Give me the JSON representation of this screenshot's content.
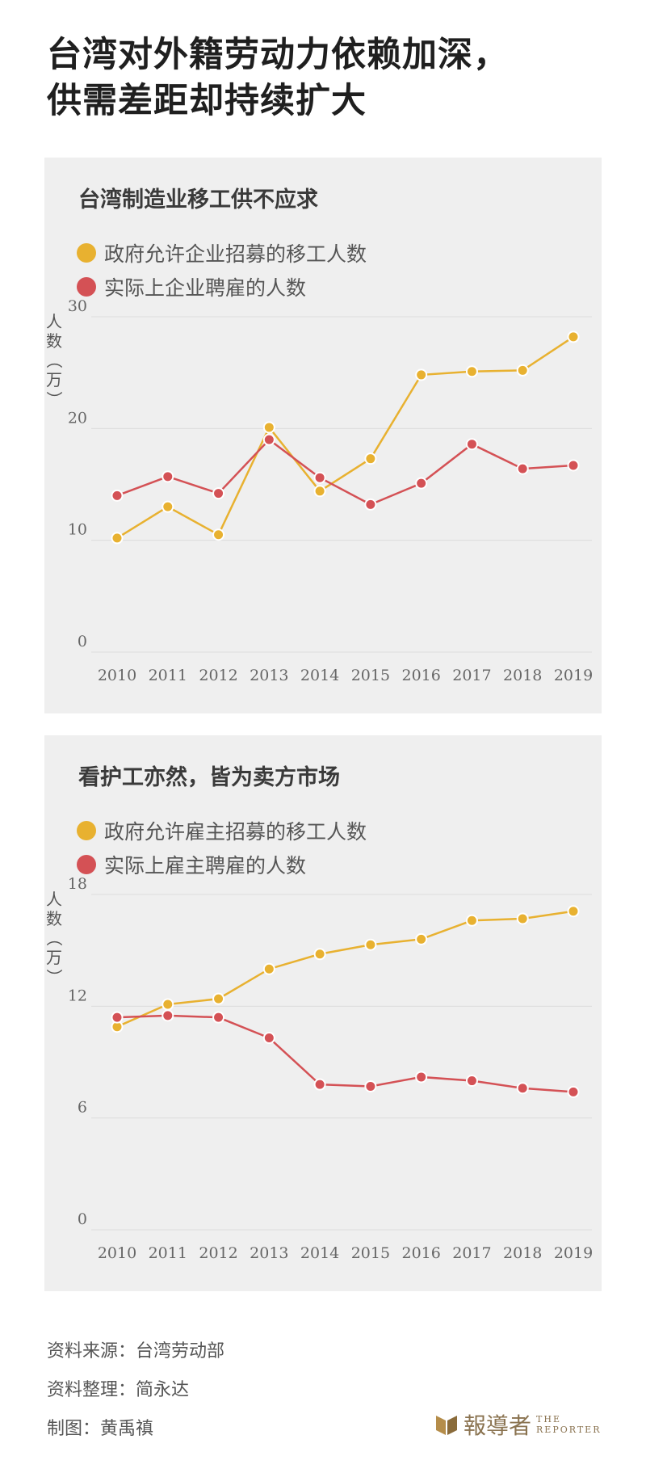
{
  "title": {
    "line1": "台湾对外籍劳动力依赖加深，",
    "line2": "供需差距却持续扩大"
  },
  "colors": {
    "yellow": "#e8b130",
    "red": "#d45155",
    "grid": "#dcdcdc",
    "axis_text": "#666666"
  },
  "chart_data": [
    {
      "type": "line",
      "title": "台湾制造业移工供不应求",
      "ylabel": "人数（万）",
      "ylim": [
        0,
        30
      ],
      "yticks": [
        0,
        10,
        20,
        30
      ],
      "grid": true,
      "legend_position": "top-left",
      "categories": [
        "2010",
        "2011",
        "2012",
        "2013",
        "2014",
        "2015",
        "2016",
        "2017",
        "2018",
        "2019"
      ],
      "series": [
        {
          "name": "政府允许企业招募的移工人数",
          "color": "#e8b130",
          "values": [
            10.2,
            13.0,
            10.5,
            20.1,
            14.4,
            17.3,
            24.8,
            25.1,
            25.2,
            28.2
          ]
        },
        {
          "name": "实际上企业聘雇的人数",
          "color": "#d45155",
          "values": [
            14.0,
            15.7,
            14.2,
            19.0,
            15.6,
            13.2,
            15.1,
            18.6,
            16.4,
            16.7
          ]
        }
      ]
    },
    {
      "type": "line",
      "title": "看护工亦然，皆为卖方市场",
      "ylabel": "人数（万）",
      "ylim": [
        0,
        18
      ],
      "yticks": [
        0,
        6,
        12,
        18
      ],
      "grid": true,
      "legend_position": "top-left",
      "categories": [
        "2010",
        "2011",
        "2012",
        "2013",
        "2014",
        "2015",
        "2016",
        "2017",
        "2018",
        "2019"
      ],
      "series": [
        {
          "name": "政府允许雇主招募的移工人数",
          "color": "#e8b130",
          "values": [
            10.9,
            12.1,
            12.4,
            14.0,
            14.8,
            15.3,
            15.6,
            16.6,
            16.7,
            17.1
          ]
        },
        {
          "name": "实际上雇主聘雇的人数",
          "color": "#d45155",
          "values": [
            11.4,
            11.5,
            11.4,
            10.3,
            7.8,
            7.7,
            8.2,
            8.0,
            7.6,
            7.4
          ]
        }
      ]
    }
  ],
  "footer": {
    "source": "资料来源：台湾劳动部",
    "compiled": "资料整理：简永达",
    "graphic": "制图：黄禹禛",
    "logo_zh": "報導者",
    "logo_en_line1": "THE",
    "logo_en_line2": "REPORTER"
  }
}
